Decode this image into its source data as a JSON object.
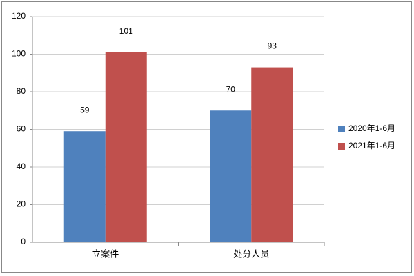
{
  "chart_data": {
    "type": "bar",
    "categories": [
      "立案件",
      "处分人员"
    ],
    "series": [
      {
        "name": "2020年1-6月",
        "color": "#4f81bd",
        "values": [
          59,
          70
        ]
      },
      {
        "name": "2021年1-6月",
        "color": "#c0504d",
        "values": [
          101,
          93
        ]
      }
    ],
    "ylim": [
      0,
      120
    ],
    "yticks": [
      0,
      20,
      40,
      60,
      80,
      100,
      120
    ],
    "grid": true,
    "legend": "right"
  }
}
